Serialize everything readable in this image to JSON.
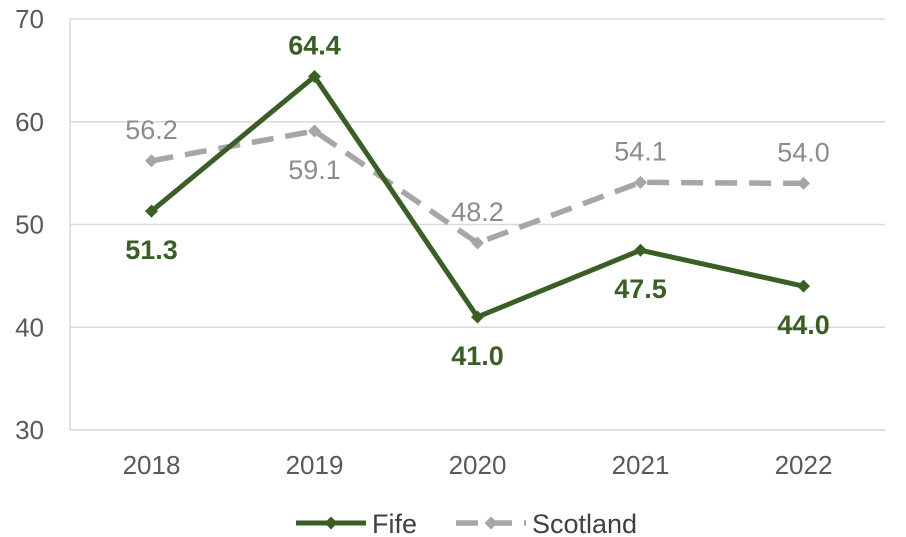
{
  "chart_data": {
    "type": "line",
    "categories": [
      "2018",
      "2019",
      "2020",
      "2021",
      "2022"
    ],
    "ylim": [
      30,
      70
    ],
    "yticks": [
      30,
      40,
      50,
      60,
      70
    ],
    "grid": true,
    "legend_position": "bottom",
    "series": [
      {
        "name": "Fife",
        "values": [
          51.3,
          64.4,
          41.0,
          47.5,
          44.0
        ],
        "labels": [
          "51.3",
          "64.4",
          "41.0",
          "47.5",
          "44.0"
        ],
        "color": "#3b5e26",
        "style": "solid",
        "marker": "diamond"
      },
      {
        "name": "Scotland",
        "values": [
          56.2,
          59.1,
          48.2,
          54.1,
          54.0
        ],
        "labels": [
          "56.2",
          "59.1",
          "48.2",
          "54.1",
          "54.0"
        ],
        "color": "#a6a6a6",
        "style": "dashed",
        "marker": "diamond"
      }
    ]
  }
}
